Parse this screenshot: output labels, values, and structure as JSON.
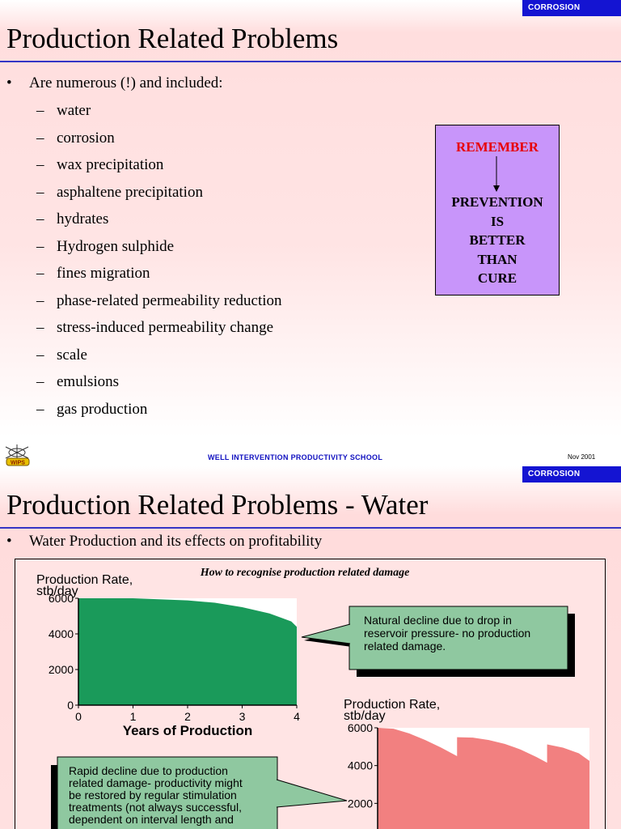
{
  "slide1": {
    "tag": "CORROSION",
    "title": "Production Related Problems",
    "intro": "Are numerous (!) and included:",
    "items": [
      "water",
      "corrosion",
      "wax precipitation",
      "asphaltene precipitation",
      "hydrates",
      "Hydrogen sulphide",
      "fines migration",
      "phase-related permeability reduction",
      "stress-induced permeability change",
      "scale",
      "emulsions",
      "gas production"
    ],
    "remember": {
      "heading": "REMEMBER",
      "lines": [
        "PREVENTION",
        "IS",
        "BETTER",
        "THAN",
        "CURE"
      ]
    },
    "colors": {
      "tag": "#1414d2",
      "remember_box": "#c895fa",
      "remember_text": "#e80000"
    }
  },
  "footer": {
    "school": "WELL INTERVENTION PRODUCTIVITY SCHOOL",
    "date": "Nov 2001"
  },
  "slide2": {
    "tag": "CORROSION",
    "title": "Production Related Problems - Water",
    "bullet": "Water Production and its effects on profitability",
    "chart_title": "How to recognise production related damage",
    "chart_data": [
      {
        "type": "area",
        "ylabel": "Production Rate, stb/day",
        "xlabel": "Years of Production",
        "x_ticks": [
          0,
          1,
          2,
          3,
          4
        ],
        "y_ticks": [
          0,
          2000,
          4000,
          6000
        ],
        "xlim": [
          0,
          4
        ],
        "ylim": [
          0,
          6000
        ],
        "series": [
          {
            "x": [
              0,
              1,
              2,
              2.5,
              3,
              3.5,
              3.9,
              4
            ],
            "y": [
              6000,
              6000,
              5880,
              5750,
              5500,
              5150,
              4700,
              4400
            ],
            "color": "#1a9a5a"
          }
        ],
        "annotation": "Natural decline due to drop in reservoir pressure- no production related damage."
      },
      {
        "type": "area",
        "ylabel": "Production Rate, stb/day",
        "y_ticks": [
          2000,
          4000,
          6000
        ],
        "xlim": [
          0,
          4
        ],
        "ylim": [
          0,
          6000
        ],
        "series": [
          {
            "x": [
              0,
              0.3,
              0.6,
              0.9,
              1.2,
              1.5,
              1.5,
              1.8,
              2.1,
              2.4,
              2.7,
              3.0,
              3.2,
              3.2,
              3.5,
              3.8,
              4.0
            ],
            "y": [
              6000,
              5950,
              5700,
              5350,
              4950,
              4500,
              5500,
              5480,
              5350,
              5150,
              4850,
              4450,
              4150,
              5120,
              4950,
              4650,
              4250
            ],
            "color": "#f28080"
          }
        ],
        "annotation": "Rapid decline due to production related damage- productivity might be restored by regular stimulation treatments (not always successful, dependent on interval length and"
      }
    ]
  }
}
